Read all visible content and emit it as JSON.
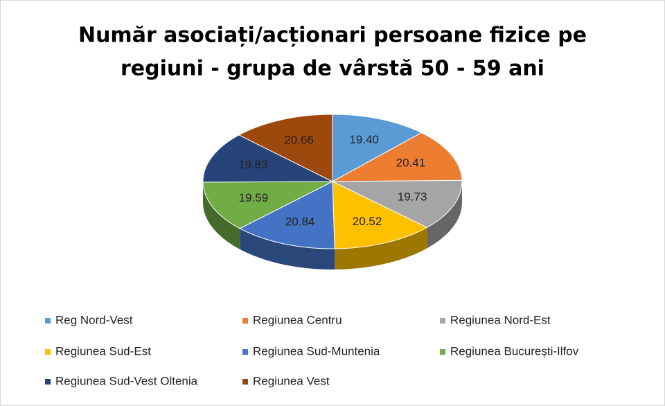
{
  "chart_data": {
    "type": "pie3d",
    "title": [
      "Număr asociați/acționari persoane fizice pe",
      "regiuni - grupa de vârstă 50 - 59 ani"
    ],
    "categories": [
      "Reg Nord-Vest",
      "Regiunea Centru",
      "Regiunea Nord-Est",
      "Regiunea Sud-Est",
      "Regiunea Sud-Muntenia",
      "Regiunea București-Ilfov",
      "Regiunea Sud-Vest Oltenia",
      "Regiunea Vest"
    ],
    "values": [
      19.4,
      20.41,
      19.73,
      20.52,
      20.84,
      19.59,
      19.83,
      20.66
    ],
    "value_labels": [
      "19.40",
      "20.41",
      "19.73",
      "20.52",
      "20.84",
      "19.59",
      "19.83",
      "20.66"
    ],
    "colors": [
      "#5b9bd5",
      "#ed7d31",
      "#a5a5a5",
      "#ffc000",
      "#4472c4",
      "#70ad47",
      "#264478",
      "#9e480e"
    ],
    "legend": "bottom"
  }
}
